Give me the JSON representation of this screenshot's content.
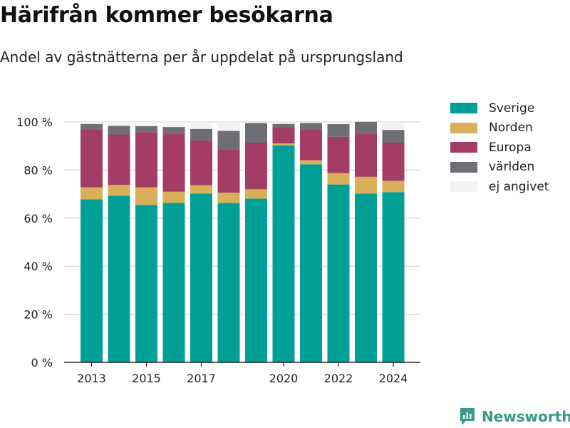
{
  "header": {
    "title": "Härifrån kommer besökarna",
    "subtitle": "Andel av gästnätterna per år uppdelat på ursprungsland"
  },
  "brand": {
    "name": "Newsworthy",
    "icon": "newsworthy-logo-icon"
  },
  "colors": {
    "Sverige": "#00a097",
    "Norden": "#daaf5a",
    "Europa": "#a43d66",
    "världen": "#6e6e74",
    "ej angivet": "#f3f3f3",
    "gridline": "#dddddd",
    "brand": "#3a9a8a"
  },
  "chart_data": {
    "type": "bar",
    "stacked": true,
    "categories": [
      2013,
      2014,
      2015,
      2016,
      2017,
      2018,
      2019,
      2020,
      2021,
      2022,
      2023,
      2024
    ],
    "x_tick_labels": [
      {
        "x": 2013,
        "label": "2013"
      },
      {
        "x": 2015,
        "label": "2015"
      },
      {
        "x": 2017,
        "label": "2017"
      },
      {
        "x": 2020,
        "label": "2020"
      },
      {
        "x": 2022,
        "label": "2022"
      },
      {
        "x": 2024,
        "label": "2024"
      }
    ],
    "y_ticks": [
      0,
      20,
      40,
      60,
      80,
      100
    ],
    "y_tick_labels": [
      "0 %",
      "20 %",
      "40 %",
      "60 %",
      "80 %",
      "100 %"
    ],
    "ylim": [
      0,
      100
    ],
    "unit": "%",
    "grid": true,
    "legend_position": "right",
    "series": [
      {
        "name": "Sverige",
        "values": [
          67.8,
          69.3,
          65.5,
          66.3,
          70.2,
          66.3,
          68.1,
          90.2,
          82.4,
          74.0,
          70.2,
          70.8
        ]
      },
      {
        "name": "Norden",
        "values": [
          5.0,
          4.5,
          7.3,
          4.7,
          3.5,
          4.3,
          3.9,
          0.9,
          1.7,
          4.7,
          7.0,
          4.7
        ]
      },
      {
        "name": "Europa",
        "values": [
          24.1,
          21.0,
          23.0,
          24.3,
          18.6,
          18.1,
          19.4,
          6.8,
          12.9,
          15.1,
          18.1,
          15.9
        ]
      },
      {
        "name": "världen",
        "values": [
          2.3,
          3.6,
          2.5,
          2.6,
          4.8,
          7.6,
          8.2,
          1.3,
          2.6,
          5.3,
          4.8,
          5.3
        ]
      },
      {
        "name": "ej angivet",
        "values": [
          0.8,
          1.6,
          1.7,
          2.1,
          2.9,
          3.7,
          0.4,
          0.8,
          0.4,
          0.9,
          0.4,
          3.3
        ]
      }
    ]
  }
}
